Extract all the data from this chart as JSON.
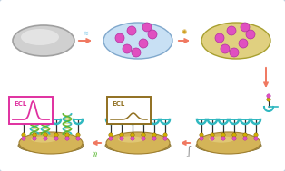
{
  "bg_color": "#f2f6fa",
  "border_color": "#c0d0e0",
  "arrow_salmon": "#f07860",
  "ecl_box1_color": "#e030a0",
  "ecl_box2_color": "#907020",
  "bead_pink": "#e050c0",
  "bead_pink_edge": "#b030a0",
  "electrode_fill": "#d4b458",
  "electrode_edge": "#a08030",
  "electrode_shadow": "#b89040",
  "probe_cyan": "#30b8c0",
  "probe_green": "#58b830",
  "probe_yellow_bead": "#d0b000",
  "probe_black": "#303030",
  "ellipse1_fill": "#d0d0d0",
  "ellipse1_edge": "#a0a0a0",
  "ellipse2_fill": "#c8e0f4",
  "ellipse2_edge": "#80a8cc",
  "ellipse3_fill": "#e0d080",
  "ellipse3_edge": "#a8a030",
  "fig_width": 3.14,
  "fig_height": 1.89,
  "dpi": 100
}
